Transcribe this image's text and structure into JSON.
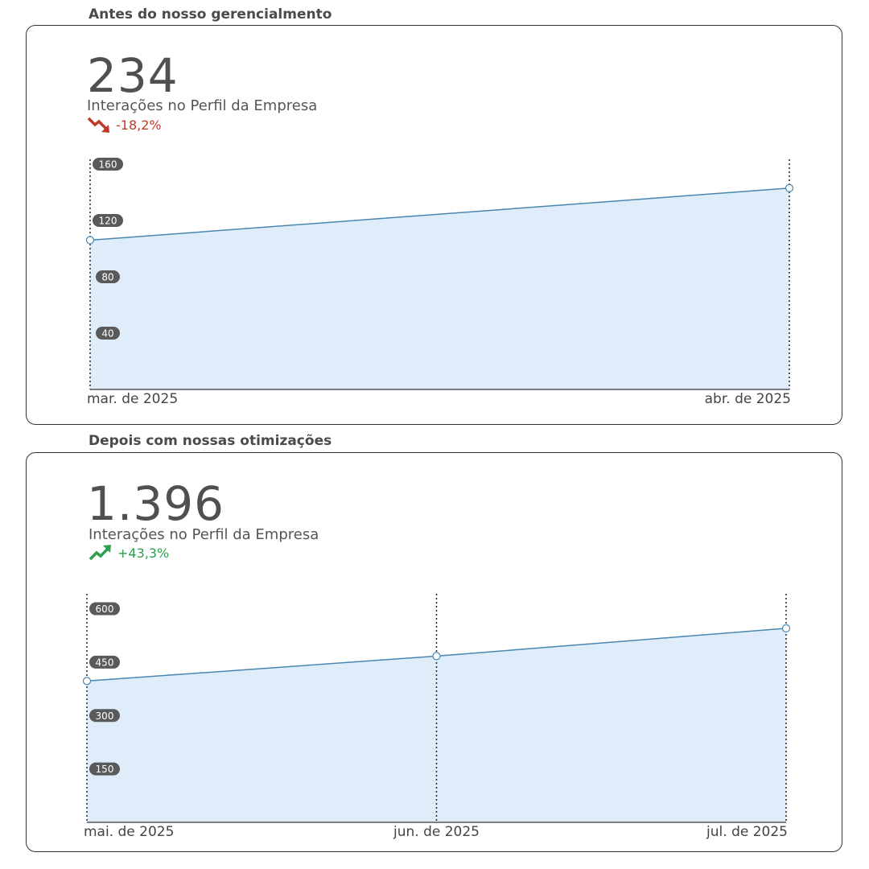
{
  "sections": [
    {
      "title": "Antes do nosso gerencialmento",
      "kpi_value": "234",
      "kpi_label": "Interações no Perfil da Empresa",
      "delta_text": "-18,2%",
      "delta_direction": "down",
      "delta_color": "#c0392b"
    },
    {
      "title": "Depois com nossas otimizações",
      "kpi_value": "1.396",
      "kpi_label": "Interações no Perfil da Empresa",
      "delta_text": "+43,3%",
      "delta_direction": "up",
      "delta_color": "#2e9e4f"
    }
  ],
  "colors": {
    "line": "#4a86b0",
    "area_fill": "#deedf9",
    "tick_badge": "#5a5a5a"
  },
  "chart_data": [
    {
      "type": "area",
      "title": "",
      "x": [
        "mar. de 2025",
        "abr. de 2025"
      ],
      "series": [
        {
          "values": [
            106,
            143
          ]
        }
      ],
      "yticks": [
        40,
        80,
        120,
        160
      ],
      "ylim": [
        0,
        168
      ],
      "grid": false,
      "vertical_guides": "dotted at each x"
    },
    {
      "type": "area",
      "title": "",
      "x": [
        "mai. de 2025",
        "jun. de 2025",
        "jul. de 2025"
      ],
      "series": [
        {
          "values": [
            397,
            467,
            545
          ]
        }
      ],
      "yticks": [
        150,
        300,
        450,
        600
      ],
      "ylim": [
        0,
        660
      ],
      "grid": false,
      "vertical_guides": "dotted at each x"
    }
  ]
}
